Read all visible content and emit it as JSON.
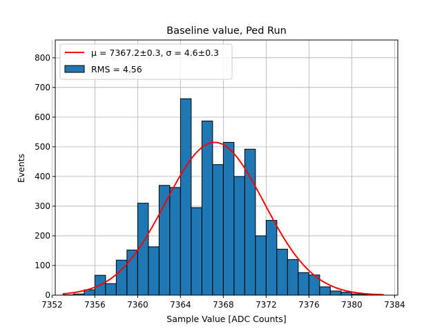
{
  "chart_data": {
    "type": "bar",
    "title": "Baseline value, Ped Run",
    "xlabel": "Sample Value [ADC Counts]",
    "ylabel": "Events",
    "xlim": [
      7352.3,
      7384.3
    ],
    "ylim": [
      0,
      860
    ],
    "xticks": [
      7352,
      7356,
      7360,
      7364,
      7368,
      7372,
      7376,
      7380,
      7384
    ],
    "yticks": [
      0,
      100,
      200,
      300,
      400,
      500,
      600,
      700,
      800
    ],
    "grid": true,
    "legend_position": "top-left",
    "bin_width": 1,
    "bins": [
      {
        "x": 7353.5,
        "value": 1
      },
      {
        "x": 7354.5,
        "value": 4
      },
      {
        "x": 7355.5,
        "value": 18
      },
      {
        "x": 7356.5,
        "value": 67
      },
      {
        "x": 7357.5,
        "value": 39
      },
      {
        "x": 7358.5,
        "value": 118
      },
      {
        "x": 7359.5,
        "value": 152
      },
      {
        "x": 7360.5,
        "value": 310
      },
      {
        "x": 7361.5,
        "value": 163
      },
      {
        "x": 7362.5,
        "value": 370
      },
      {
        "x": 7363.5,
        "value": 363
      },
      {
        "x": 7364.5,
        "value": 662
      },
      {
        "x": 7365.5,
        "value": 295
      },
      {
        "x": 7366.5,
        "value": 587
      },
      {
        "x": 7367.5,
        "value": 440
      },
      {
        "x": 7368.5,
        "value": 515
      },
      {
        "x": 7369.5,
        "value": 400
      },
      {
        "x": 7370.5,
        "value": 492
      },
      {
        "x": 7371.5,
        "value": 200
      },
      {
        "x": 7372.5,
        "value": 252
      },
      {
        "x": 7373.5,
        "value": 155
      },
      {
        "x": 7374.5,
        "value": 120
      },
      {
        "x": 7375.5,
        "value": 76
      },
      {
        "x": 7376.5,
        "value": 68
      },
      {
        "x": 7377.5,
        "value": 28
      },
      {
        "x": 7378.5,
        "value": 14
      },
      {
        "x": 7379.5,
        "value": 10
      },
      {
        "x": 7380.5,
        "value": 4
      },
      {
        "x": 7381.5,
        "value": 2
      }
    ],
    "fit": {
      "type": "gaussian",
      "mu": 7367.2,
      "sigma": 4.6,
      "amplitude": 515,
      "x_range": [
        7353,
        7383
      ]
    },
    "legend": {
      "fit_label": "μ = 7367.2±0.3, σ = 4.6±0.3",
      "hist_label": "RMS = 4.56"
    },
    "colors": {
      "bar_fill": "#1f77b4",
      "bar_edge": "#000000",
      "fit_line": "#ff0000",
      "grid": "#b0b0b0"
    }
  }
}
